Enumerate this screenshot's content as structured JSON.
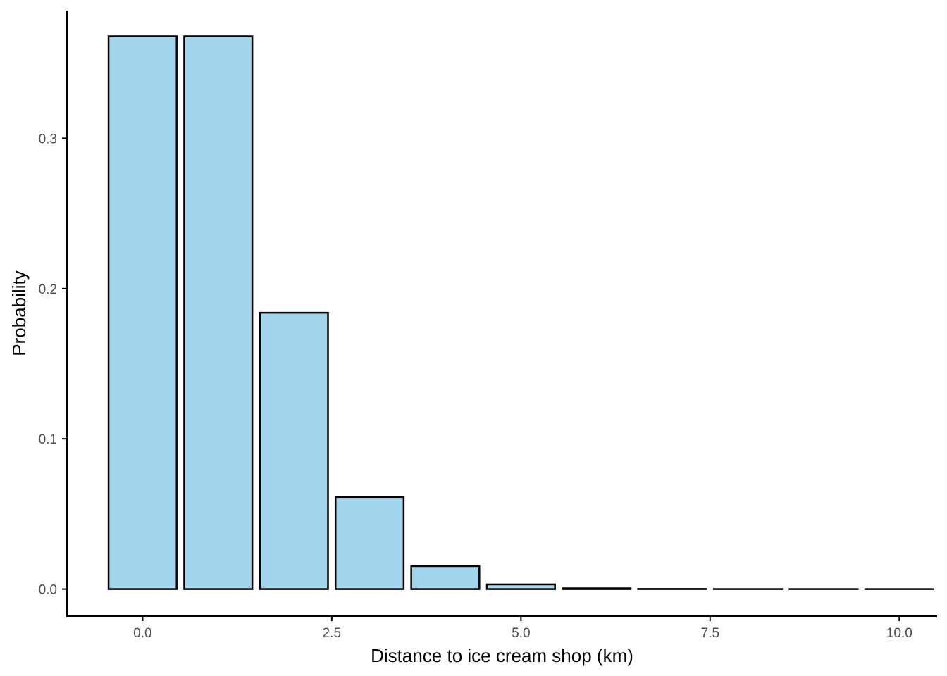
{
  "chart_data": {
    "type": "bar",
    "title": "",
    "xlabel": "Distance to ice cream shop (km)",
    "ylabel": "Probability",
    "x": [
      0,
      1,
      2,
      3,
      4,
      5,
      6,
      7,
      8,
      9,
      10
    ],
    "values": [
      0.3679,
      0.3679,
      0.1839,
      0.0613,
      0.0153,
      0.0031,
      0.0005,
      0.0001,
      1e-05,
      1e-06,
      1e-07
    ],
    "xlim": [
      -1,
      10.5
    ],
    "ylim": [
      -0.018,
      0.385
    ],
    "xticks": [
      0,
      2.5,
      5,
      7.5,
      10
    ],
    "xtick_labels": [
      "0.0",
      "2.5",
      "5.0",
      "7.5",
      "10.0"
    ],
    "yticks": [
      0,
      0.1,
      0.2,
      0.3
    ],
    "ytick_labels": [
      "0.0",
      "0.1",
      "0.2",
      "0.3"
    ],
    "bar_width": 0.9,
    "grid": false,
    "legend": "none",
    "colors": {
      "bar_fill": "#a3d5ec",
      "bar_stroke": "#000000",
      "axis": "#000000",
      "tick_text": "#4d4d4d"
    }
  }
}
